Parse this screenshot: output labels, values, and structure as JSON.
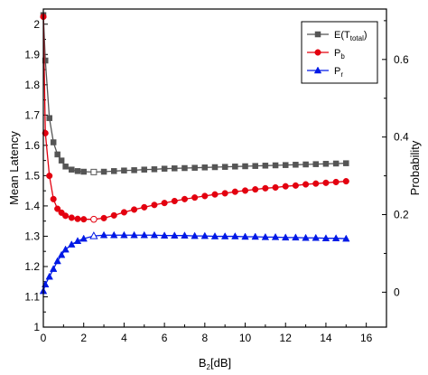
{
  "chart_data": {
    "type": "line",
    "xlabel": "B",
    "xlabel_sub": "2",
    "xlabel_suffix": "[dB]",
    "ylabel_left": "Mean Latency",
    "ylabel_right": "Probability",
    "xlim": [
      0,
      17
    ],
    "ylim_left": [
      1.0,
      2.05
    ],
    "ylim_right": [
      -0.09,
      0.73
    ],
    "xticks": [
      0,
      2,
      4,
      6,
      8,
      10,
      12,
      14,
      16
    ],
    "yticks_left": [
      1,
      1.1,
      1.2,
      1.3,
      1.4,
      1.5,
      1.6,
      1.7,
      1.8,
      1.9,
      2
    ],
    "yticks_right": [
      0,
      0.2,
      0.4,
      0.6
    ],
    "legend_position": "top-right",
    "series": [
      {
        "name": "E(T",
        "name_sub": "total",
        "name_suffix": ")",
        "axis": "left",
        "color": "#555555",
        "marker": "square",
        "x": [
          0,
          0.1,
          0.3,
          0.5,
          0.7,
          0.9,
          1.1,
          1.4,
          1.7,
          2.0,
          2.5,
          3.0,
          3.5,
          4.0,
          4.5,
          5.0,
          5.5,
          6.0,
          6.5,
          7.0,
          7.5,
          8.0,
          8.5,
          9.0,
          9.5,
          10.0,
          10.5,
          11.0,
          11.5,
          12.0,
          12.5,
          13.0,
          13.5,
          14.0,
          14.5,
          15.0
        ],
        "y": [
          2.03,
          1.88,
          1.69,
          1.61,
          1.57,
          1.55,
          1.53,
          1.52,
          1.515,
          1.513,
          1.512,
          1.513,
          1.515,
          1.517,
          1.518,
          1.52,
          1.521,
          1.523,
          1.524,
          1.525,
          1.526,
          1.527,
          1.528,
          1.529,
          1.53,
          1.531,
          1.532,
          1.533,
          1.534,
          1.535,
          1.536,
          1.537,
          1.538,
          1.539,
          1.54,
          1.541
        ]
      },
      {
        "name": "P",
        "name_sub": "b",
        "name_suffix": "",
        "axis": "right",
        "color": "#e3000f",
        "marker": "circle",
        "x": [
          0,
          0.1,
          0.3,
          0.5,
          0.7,
          0.9,
          1.1,
          1.4,
          1.7,
          2.0,
          2.5,
          3.0,
          3.5,
          4.0,
          4.5,
          5.0,
          5.5,
          6.0,
          6.5,
          7.0,
          7.5,
          8.0,
          8.5,
          9.0,
          9.5,
          10.0,
          10.5,
          11.0,
          11.5,
          12.0,
          12.5,
          13.0,
          13.5,
          14.0,
          14.5,
          15.0
        ],
        "y": [
          0.71,
          0.41,
          0.3,
          0.24,
          0.215,
          0.205,
          0.197,
          0.192,
          0.189,
          0.188,
          0.188,
          0.191,
          0.198,
          0.206,
          0.213,
          0.219,
          0.225,
          0.23,
          0.235,
          0.24,
          0.244,
          0.248,
          0.252,
          0.255,
          0.259,
          0.262,
          0.265,
          0.268,
          0.27,
          0.273,
          0.275,
          0.278,
          0.28,
          0.282,
          0.284,
          0.286
        ]
      },
      {
        "name": "P",
        "name_sub": "r",
        "name_suffix": "",
        "axis": "right",
        "color": "#0019e6",
        "marker": "triangle",
        "x": [
          0,
          0.1,
          0.3,
          0.5,
          0.7,
          0.9,
          1.1,
          1.4,
          1.7,
          2.0,
          2.5,
          3.0,
          3.5,
          4.0,
          4.5,
          5.0,
          5.5,
          6.0,
          6.5,
          7.0,
          7.5,
          8.0,
          8.5,
          9.0,
          9.5,
          10.0,
          10.5,
          11.0,
          11.5,
          12.0,
          12.5,
          13.0,
          13.5,
          14.0,
          14.5,
          15.0
        ],
        "y": [
          0.003,
          0.02,
          0.04,
          0.06,
          0.08,
          0.096,
          0.11,
          0.123,
          0.132,
          0.138,
          0.145,
          0.147,
          0.147,
          0.147,
          0.147,
          0.147,
          0.147,
          0.146,
          0.146,
          0.146,
          0.145,
          0.145,
          0.144,
          0.144,
          0.144,
          0.143,
          0.143,
          0.142,
          0.142,
          0.141,
          0.141,
          0.14,
          0.14,
          0.139,
          0.139,
          0.138
        ]
      }
    ],
    "highlighted_points": [
      {
        "series": 0,
        "x": 2.5,
        "y": 1.512
      },
      {
        "series": 1,
        "x": 2.5,
        "y": 0.188
      },
      {
        "series": 2,
        "x": 2.5,
        "y": 0.145
      }
    ]
  }
}
